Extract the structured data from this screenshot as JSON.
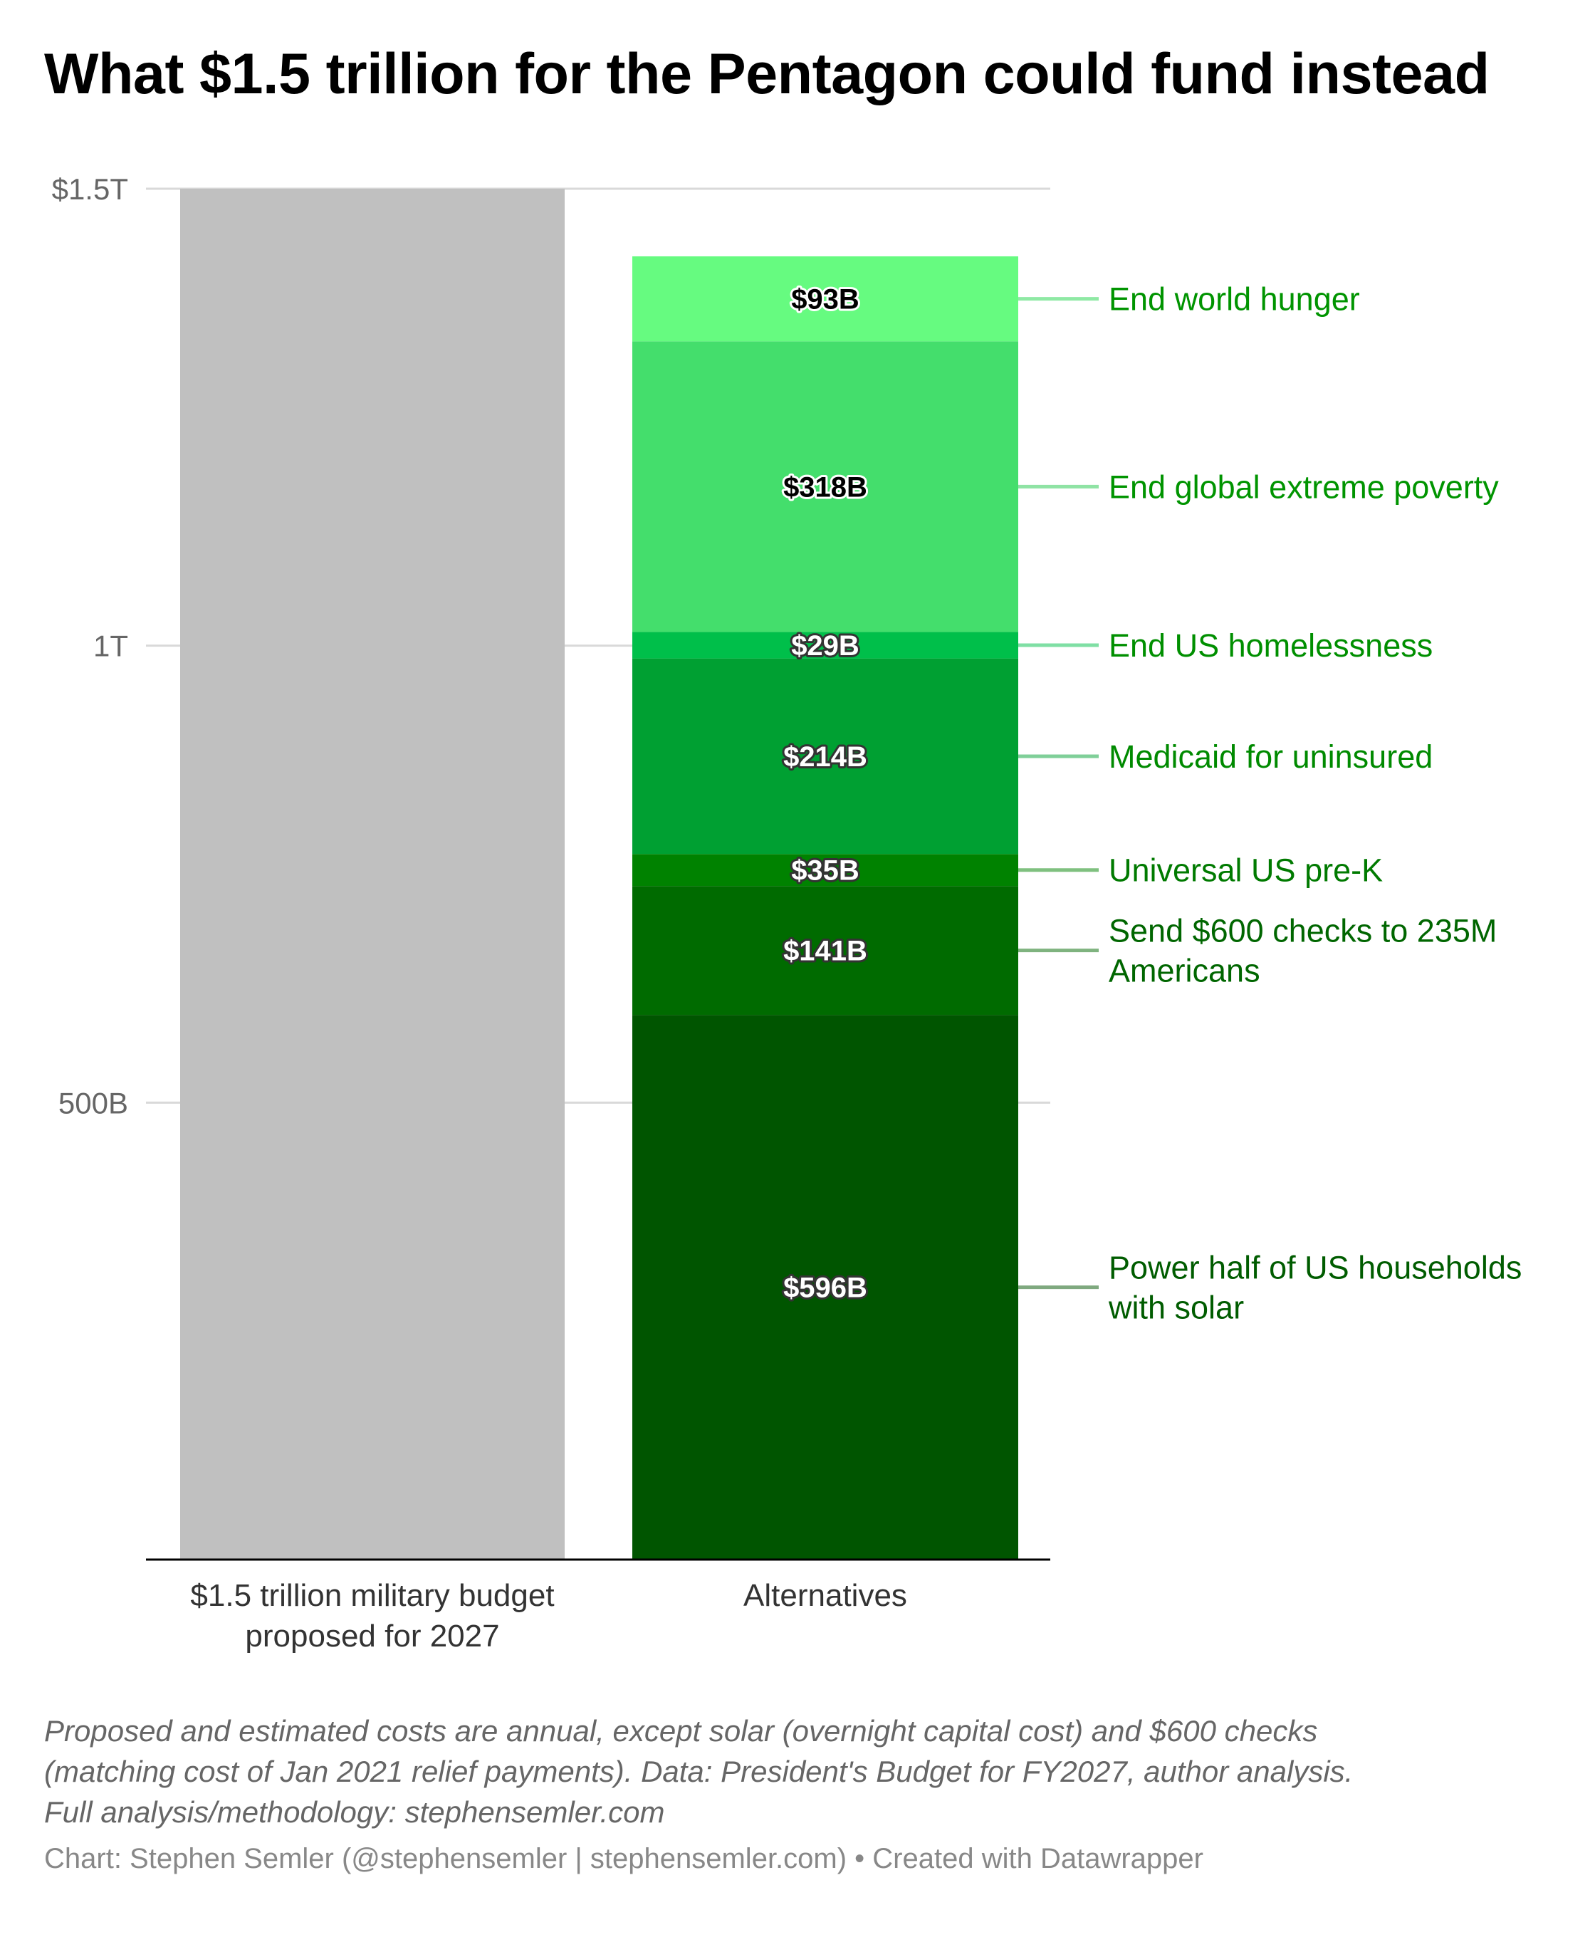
{
  "title": "What $1.5 trillion for the Pentagon could fund instead",
  "chart_data": {
    "type": "bar",
    "stacked": true,
    "ylim": [
      0,
      1500
    ],
    "y_unit": "billion USD",
    "y_ticks": [
      {
        "value": 1500,
        "label": "$1.5T"
      },
      {
        "value": 1000,
        "label": "1T"
      },
      {
        "value": 500,
        "label": "500B"
      }
    ],
    "grid": true,
    "categories": [
      [
        "$1.5 trillion military budget",
        "proposed for 2027"
      ],
      [
        "Alternatives"
      ]
    ],
    "base_bar": {
      "value": 1500,
      "color": "#c0c0c0"
    },
    "segments": [
      {
        "value": 596,
        "label": "$596B",
        "annotation": [
          "Power half of US households",
          "with solar"
        ],
        "color": "#005500",
        "label_color": "#ffffff",
        "label_halo": "#333333",
        "annotation_color": "#005c00",
        "line_color": "#7fa97f"
      },
      {
        "value": 141,
        "label": "$141B",
        "annotation": [
          "Send $600 checks to 235M",
          "Americans"
        ],
        "color": "#006b00",
        "label_color": "#ffffff",
        "label_halo": "#333333",
        "annotation_color": "#006600",
        "line_color": "#7fb37f"
      },
      {
        "value": 35,
        "label": "$35B",
        "annotation": [
          "Universal US pre-K"
        ],
        "color": "#008200",
        "label_color": "#ffffff",
        "label_halo": "#333333",
        "annotation_color": "#007a00",
        "line_color": "#7fc07f"
      },
      {
        "value": 214,
        "label": "$214B",
        "annotation": [
          "Medicaid for uninsured"
        ],
        "color": "#00a032",
        "label_color": "#ffffff",
        "label_halo": "#333333",
        "annotation_color": "#008a00",
        "line_color": "#7fcf98"
      },
      {
        "value": 29,
        "label": "$29B",
        "annotation": [
          "End US homelessness"
        ],
        "color": "#00bf4a",
        "label_color": "#ffffff",
        "label_halo": "#333333",
        "annotation_color": "#008f00",
        "line_color": "#7fdfa4"
      },
      {
        "value": 318,
        "label": "$318B",
        "annotation": [
          "End global extreme poverty"
        ],
        "color": "#44de6c",
        "label_color": "#000000",
        "label_halo": "#ffffff",
        "annotation_color": "#009400",
        "line_color": "#8fe3a4"
      },
      {
        "value": 93,
        "label": "$93B",
        "annotation": [
          "End world hunger"
        ],
        "color": "#66fb80",
        "label_color": "#000000",
        "label_halo": "#ffffff",
        "annotation_color": "#009400",
        "line_color": "#8fe9a4"
      }
    ]
  },
  "notes": [
    "Proposed and estimated costs are annual, except solar (overnight capital cost) and $600 checks",
    "(matching cost of Jan 2021 relief payments). Data: President's Budget for FY2027, author analysis.",
    "Full analysis/methodology: stephensemler.com"
  ],
  "credit": "Chart: Stephen Semler (@stephensemler | stephensemler.com) • Created with Datawrapper"
}
